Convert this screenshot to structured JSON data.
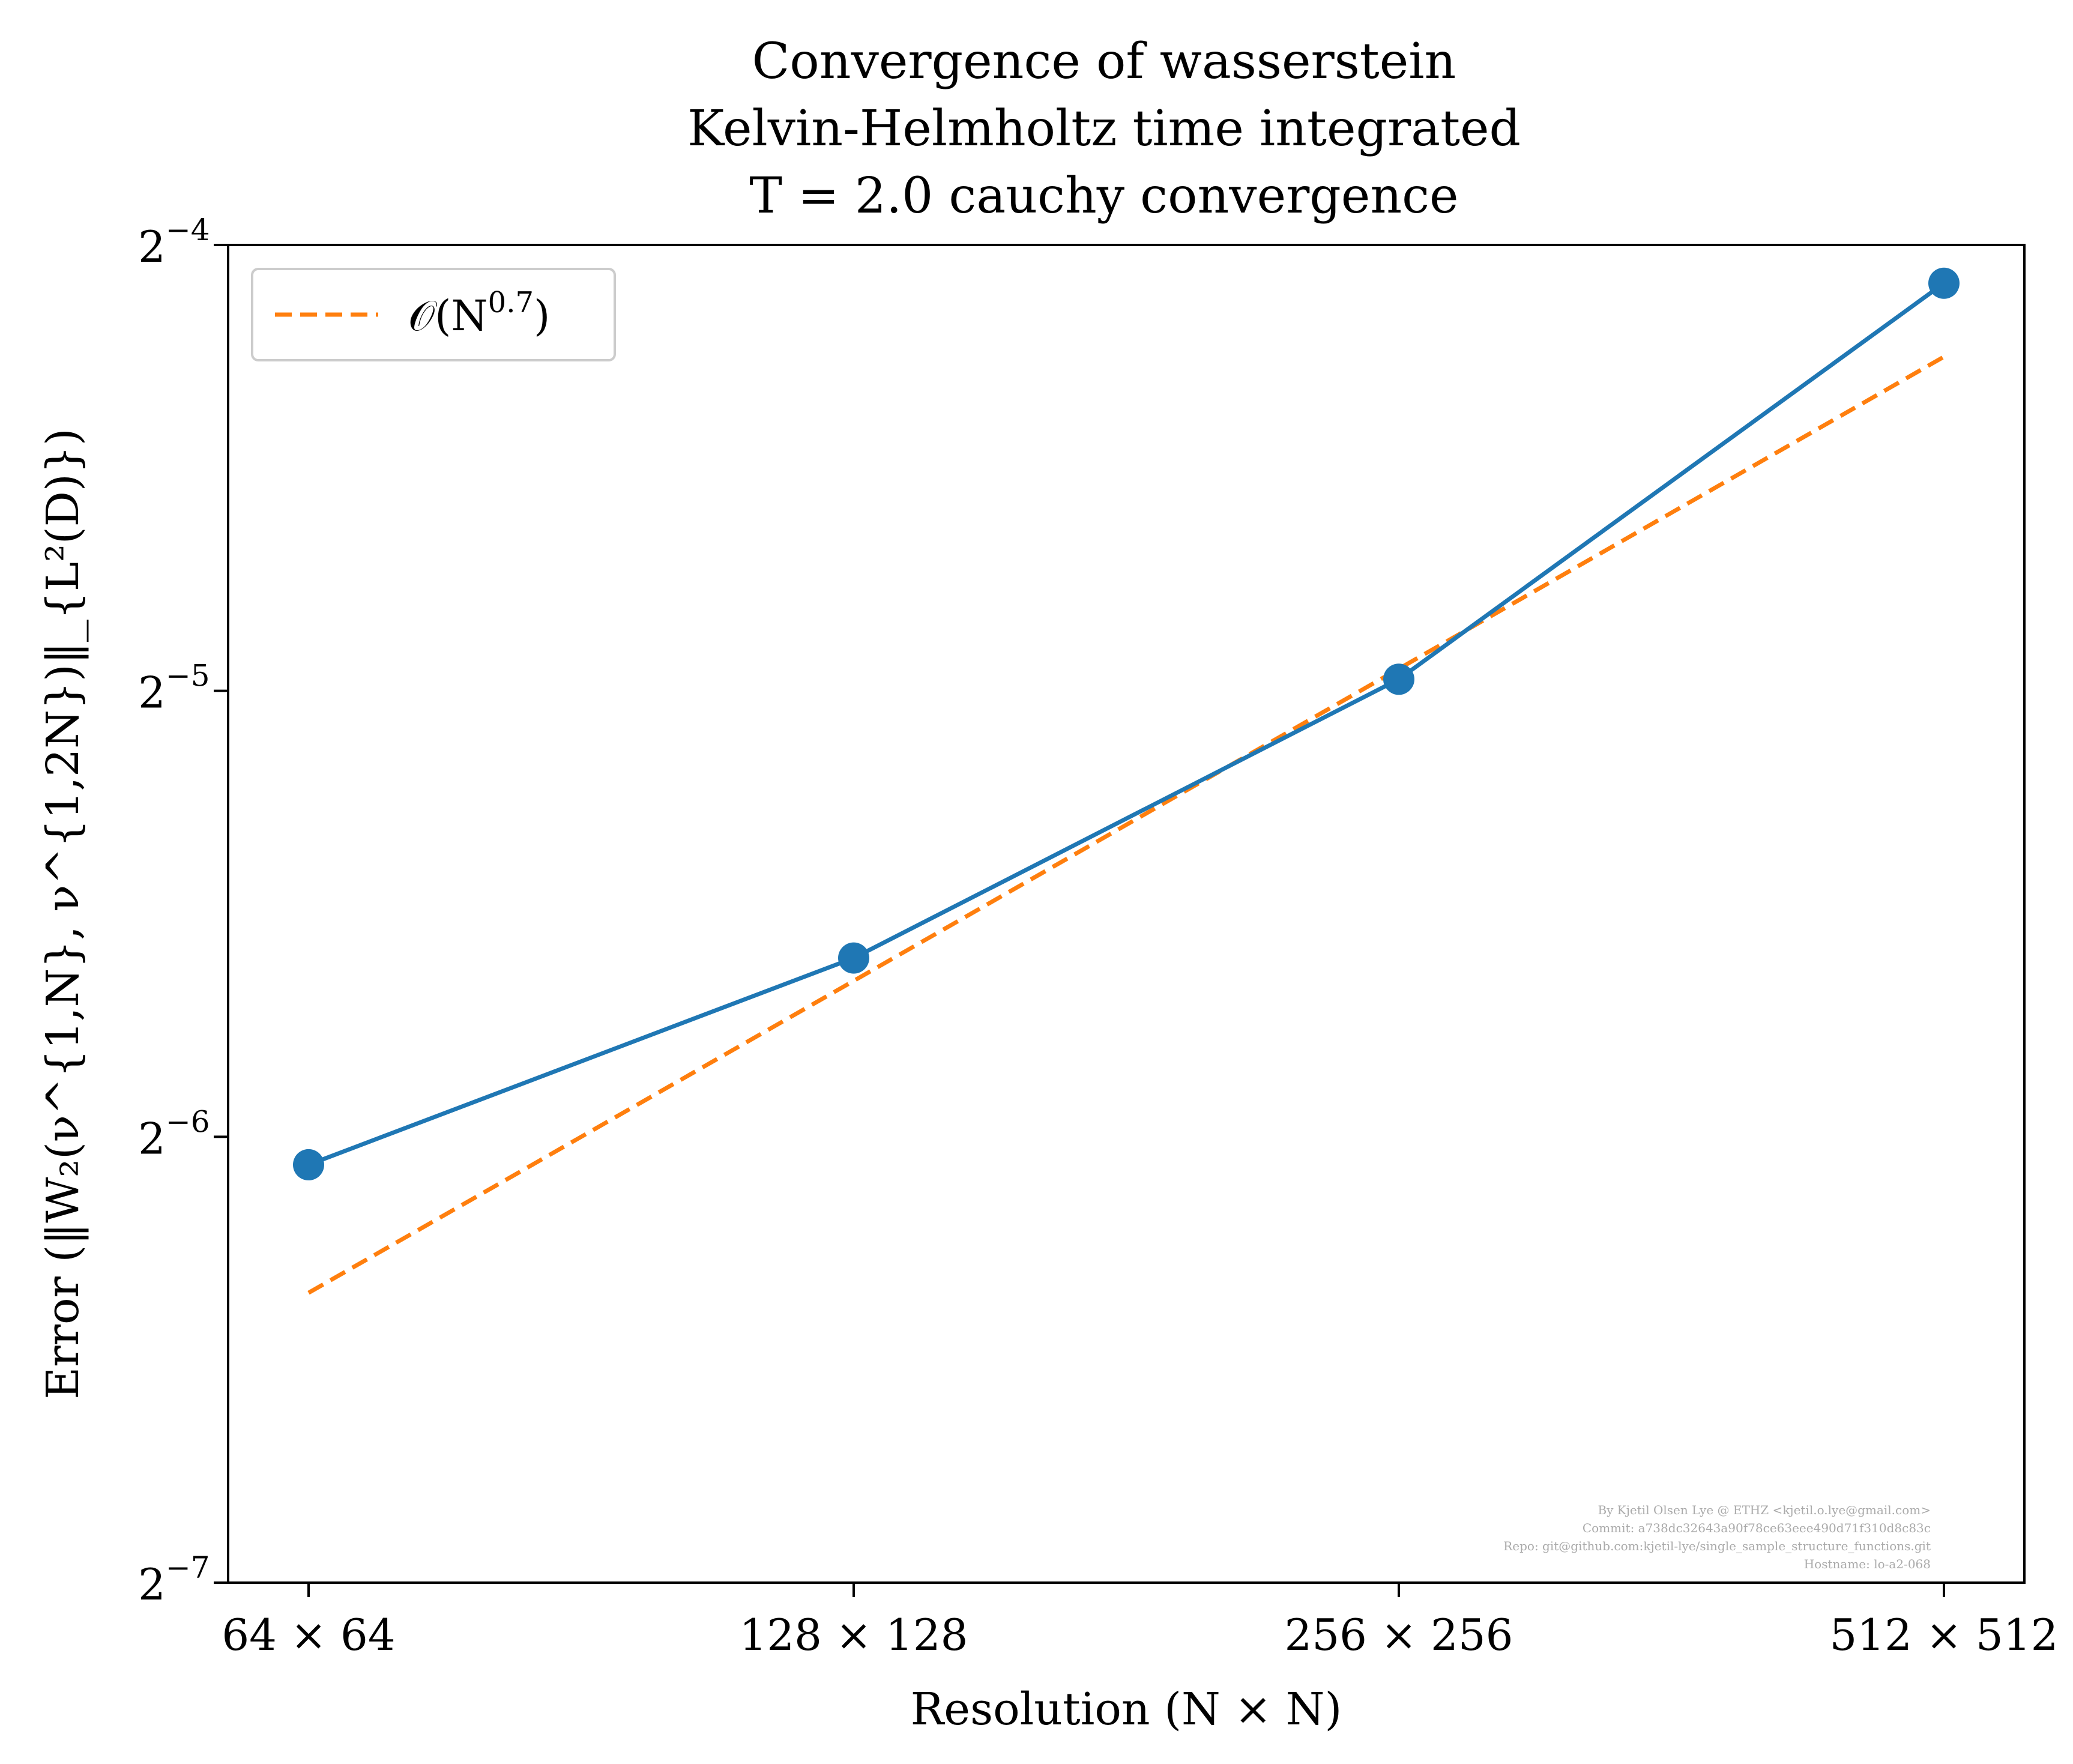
{
  "chart_data": {
    "type": "line",
    "title": "Convergence of wasserstein",
    "subtitle_lines": [
      "Kelvin-Helmholtz time integrated",
      "T = 2.0 cauchy convergence"
    ],
    "xlabel": "Resolution (N × N)",
    "ylabel": "Error (‖W₂(ν^{1,N}, ν^{1,2N})‖_{L²(D)})",
    "x_scale": "log2",
    "y_scale": "log2",
    "categories": [
      "64 × 64",
      "128 × 128",
      "256 × 256",
      "512 × 512"
    ],
    "x": [
      64,
      128,
      256,
      512
    ],
    "y_ticks": [
      {
        "exp": -4,
        "label": "2",
        "sup": "−4"
      },
      {
        "exp": -5,
        "label": "2",
        "sup": "−5"
      },
      {
        "exp": -6,
        "label": "2",
        "sup": "−6"
      },
      {
        "exp": -7,
        "label": "2",
        "sup": "−7"
      }
    ],
    "ylim_log2": [
      -7,
      -4
    ],
    "grid": false,
    "legend_placement": "top-left",
    "series": [
      {
        "values": [
          0.01496,
          0.02063,
          0.03182,
          0.05889
        ],
        "color": "#1f77b4",
        "style": "solid",
        "marker": "circle"
      },
      {
        "name": "O(N^0.7)",
        "values": [
          0.01226,
          0.01991,
          0.03234,
          0.05253
        ],
        "color": "#ff7f0e",
        "style": "dashed",
        "marker": "none"
      }
    ],
    "legend": {
      "label_main": "𝒪(N",
      "label_sup": "0.7",
      "label_end": ")"
    },
    "footer_lines": [
      "By Kjetil Olsen Lye @ ETHZ <kjetil.o.lye@gmail.com>",
      "Commit: a738dc32643a90f78ce63eee490d71f310d8c83c",
      "Repo: git@github.com:kjetil-lye/single_sample_structure_functions.git",
      "Hostname: lo-a2-068"
    ]
  }
}
